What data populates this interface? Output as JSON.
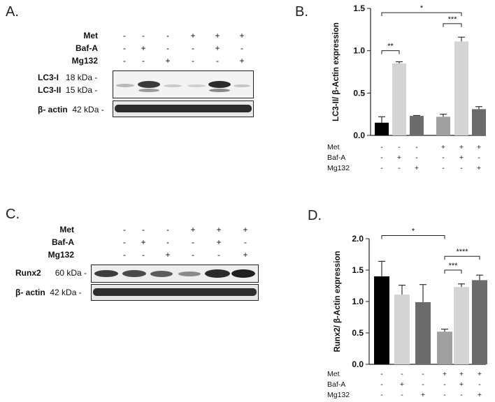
{
  "panels": {
    "a": {
      "label": "A.",
      "treatments": [
        {
          "name": "Met",
          "signs": [
            "-",
            "-",
            "-",
            "+",
            "+",
            "+"
          ]
        },
        {
          "name": "Baf-A",
          "signs": [
            "-",
            "+",
            "-",
            "-",
            "+",
            "-"
          ]
        },
        {
          "name": "Mg132",
          "signs": [
            "-",
            "-",
            "+",
            "-",
            "-",
            "+"
          ]
        }
      ],
      "blots": [
        {
          "lines": [
            {
              "protein": "LC3-I",
              "size": "18 kDa -"
            },
            {
              "protein": "LC3-II",
              "size": "15 kDa -"
            }
          ]
        },
        {
          "lines": [
            {
              "protein": "β- actin",
              "size": "42 kDa -"
            }
          ]
        }
      ]
    },
    "c": {
      "label": "C.",
      "treatments": [
        {
          "name": "Met",
          "signs": [
            "-",
            "-",
            "-",
            "+",
            "+",
            "+"
          ]
        },
        {
          "name": "Baf-A",
          "signs": [
            "-",
            "+",
            "-",
            "-",
            "+",
            "-"
          ]
        },
        {
          "name": "Mg132",
          "signs": [
            "-",
            "-",
            "+",
            "-",
            "-",
            "+"
          ]
        }
      ],
      "blots": [
        {
          "lines": [
            {
              "protein": "Runx2",
              "size": "60 kDa -"
            }
          ]
        },
        {
          "lines": [
            {
              "protein": "β- actin",
              "size": "42 kDa -"
            }
          ]
        }
      ]
    },
    "b": {
      "label": "B."
    },
    "d": {
      "label": "D."
    }
  },
  "colors": {
    "black_bar": "#000000",
    "light_bar": "#d4d4d4",
    "dark_gray_bar": "#6b6b6b",
    "mid_gray_bar": "#a0a0a0",
    "error": "#333333"
  },
  "chart_data": [
    {
      "type": "bar",
      "ylabel": "LC3-II/ β-Actin expression",
      "ylim": [
        0,
        1.5
      ],
      "yticks": [
        "0.0",
        "0.5",
        "1.0",
        "1.5"
      ],
      "values": [
        0.15,
        0.85,
        0.23,
        0.22,
        1.11,
        0.31
      ],
      "errors": [
        0.07,
        0.02,
        0.005,
        0.03,
        0.05,
        0.03
      ],
      "bar_colors": [
        "#000000",
        "#d4d4d4",
        "#6b6b6b",
        "#a0a0a0",
        "#d4d4d4",
        "#6b6b6b"
      ],
      "treatment_rows": [
        {
          "name": "Met",
          "signs": [
            "-",
            "-",
            "-",
            "+",
            "+",
            "+"
          ]
        },
        {
          "name": "Baf-A",
          "signs": [
            "-",
            "+",
            "-",
            "-",
            "+",
            "-"
          ]
        },
        {
          "name": "Mg132",
          "signs": [
            "-",
            "-",
            "+",
            "-",
            "-",
            "+"
          ]
        }
      ],
      "significance": [
        {
          "from": 0,
          "to": 1,
          "label": "**",
          "y": 1.0
        },
        {
          "from": 3,
          "to": 4,
          "label": "***",
          "y": 1.32
        },
        {
          "from": 0,
          "to": 4,
          "label": "*",
          "y": 1.45
        }
      ]
    },
    {
      "type": "bar",
      "ylabel": "Runx2/ β-Actin expression",
      "ylim": [
        0,
        2.0
      ],
      "yticks": [
        "0.0",
        "0.5",
        "1.0",
        "1.5",
        "2.0"
      ],
      "values": [
        1.4,
        1.11,
        0.99,
        0.52,
        1.23,
        1.34
      ],
      "errors": [
        0.24,
        0.15,
        0.28,
        0.04,
        0.05,
        0.08
      ],
      "bar_colors": [
        "#000000",
        "#d4d4d4",
        "#6b6b6b",
        "#a0a0a0",
        "#d4d4d4",
        "#6b6b6b"
      ],
      "treatment_rows": [
        {
          "name": "Met",
          "signs": [
            "-",
            "-",
            "-",
            "+",
            "+",
            "+"
          ]
        },
        {
          "name": "Baf-A",
          "signs": [
            "-",
            "+",
            "-",
            "-",
            "+",
            "-"
          ]
        },
        {
          "name": "Mg132",
          "signs": [
            "-",
            "-",
            "+",
            "-",
            "-",
            "+"
          ]
        }
      ],
      "significance": [
        {
          "from": 3,
          "to": 4,
          "label": "***",
          "y": 1.5
        },
        {
          "from": 3,
          "to": 5,
          "label": "****",
          "y": 1.72
        },
        {
          "from": 0,
          "to": 3,
          "label": "*",
          "y": 2.05
        }
      ]
    }
  ]
}
